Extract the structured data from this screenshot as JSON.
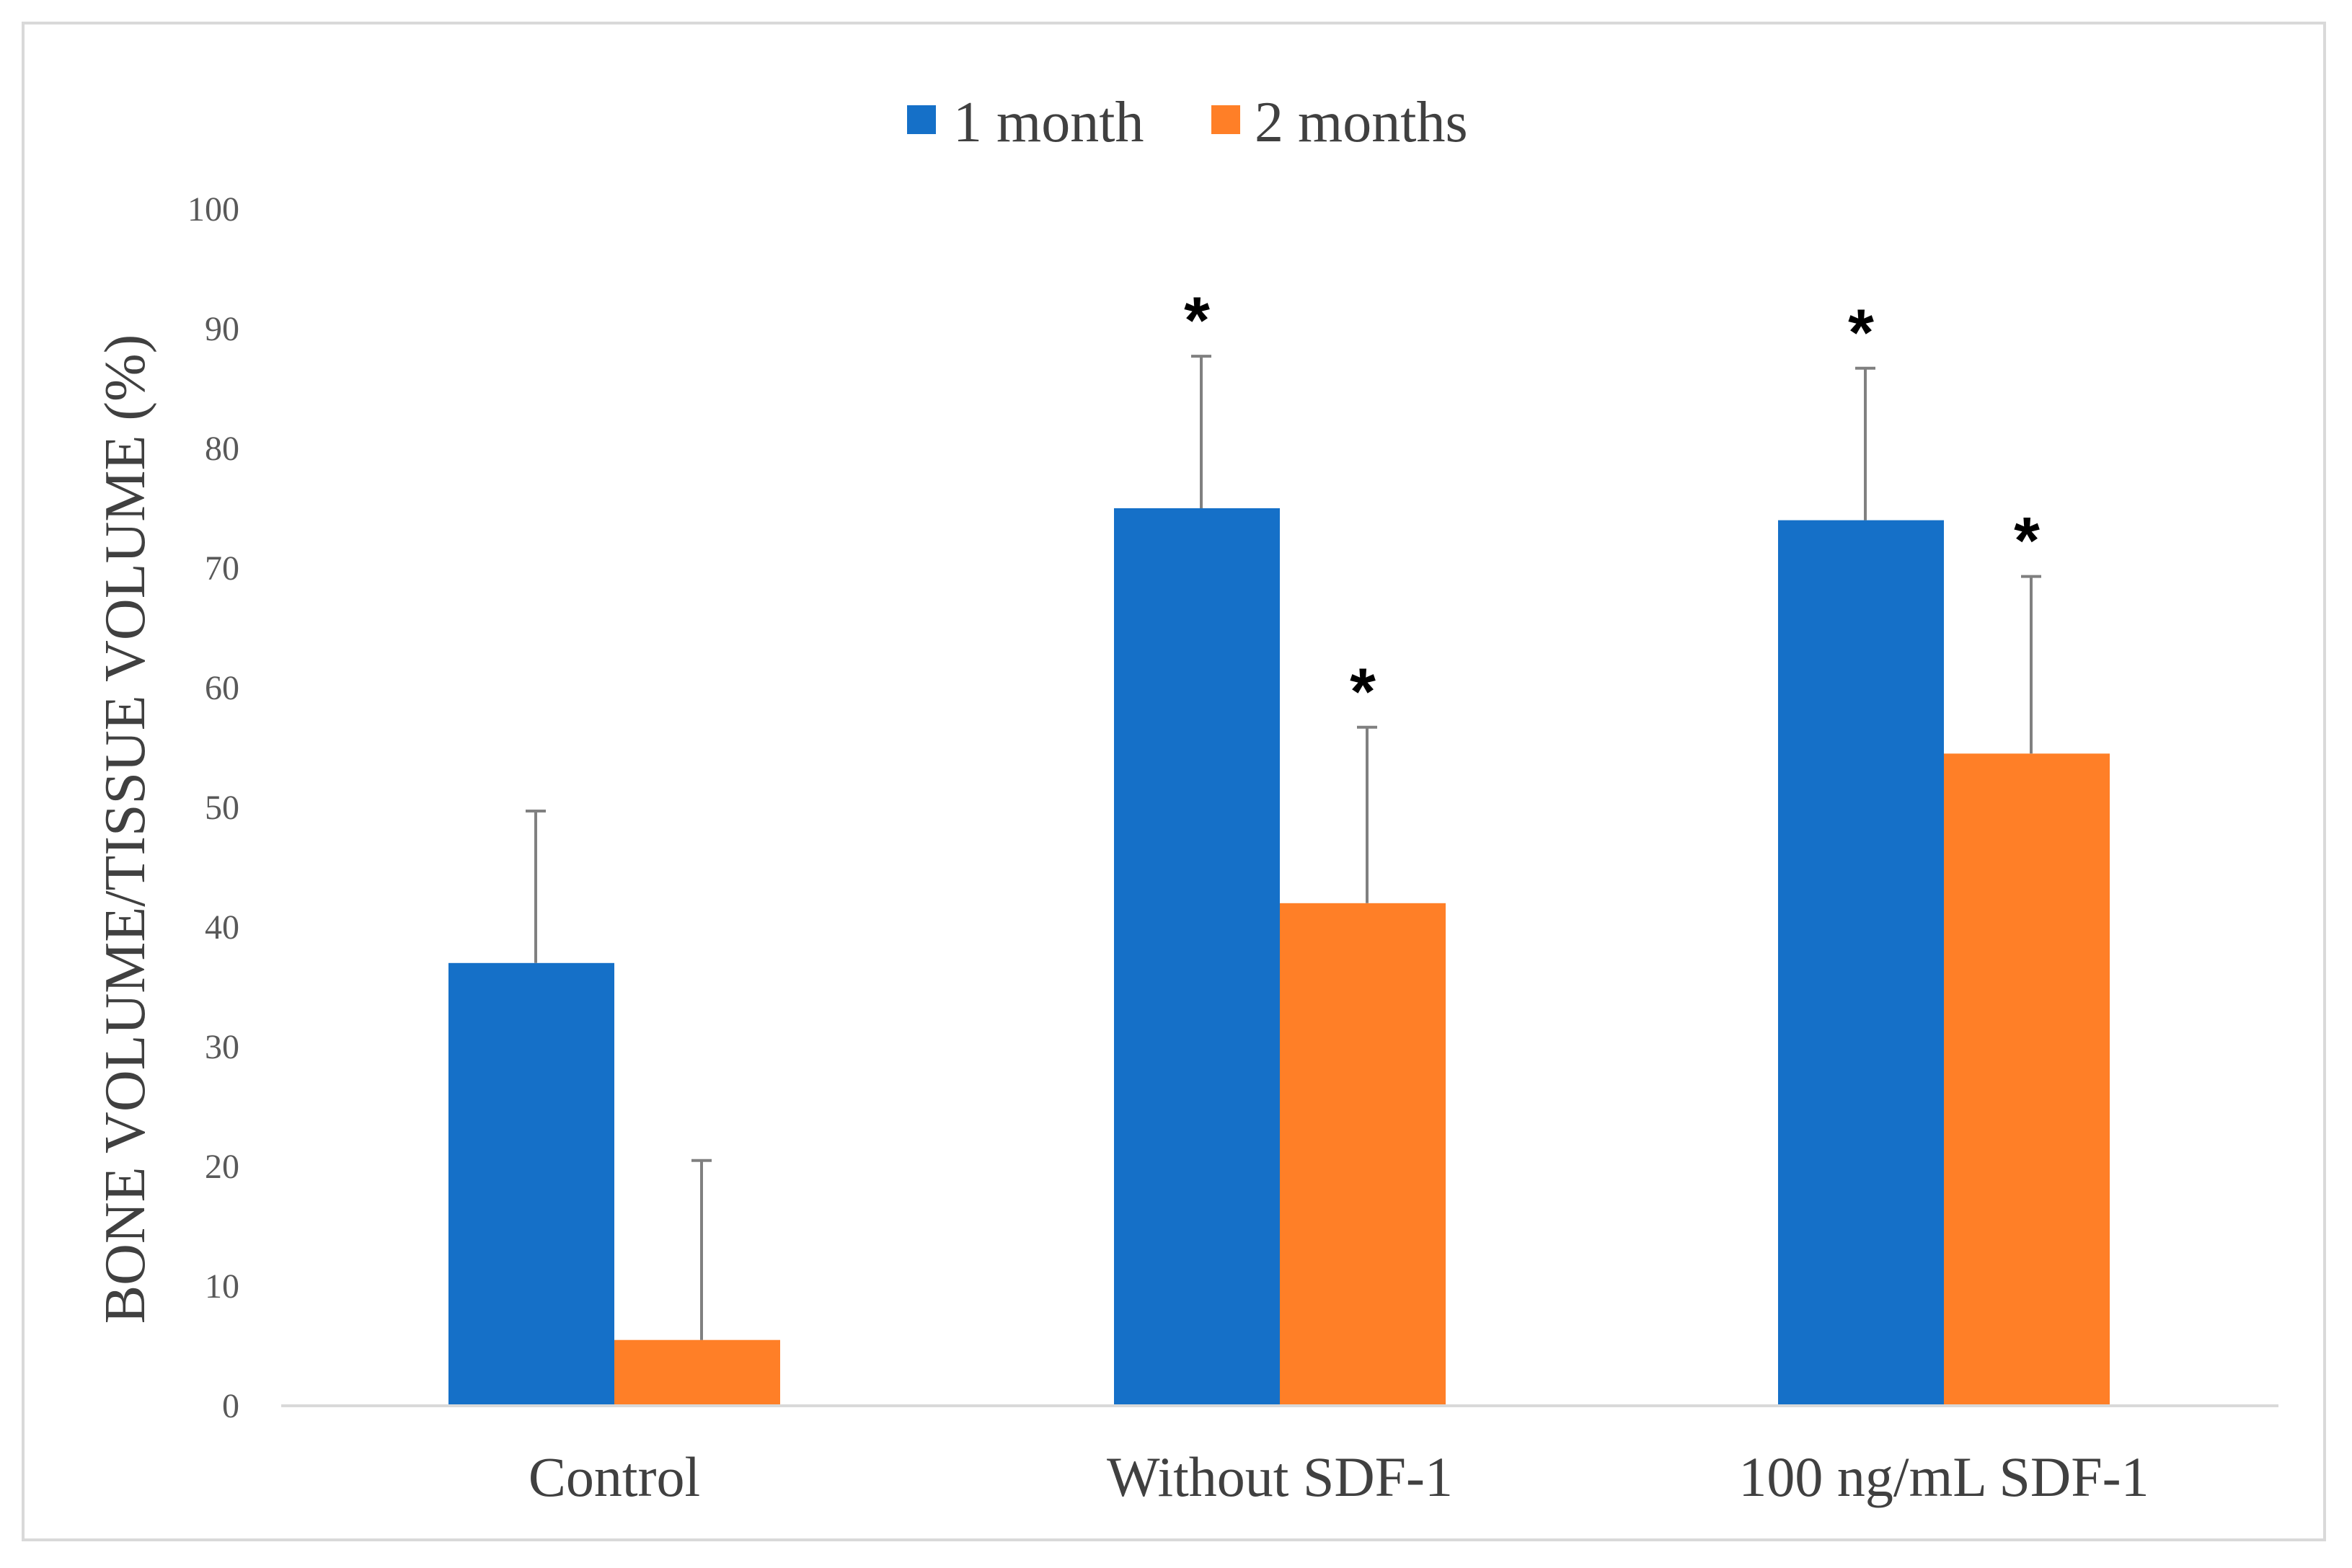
{
  "chart_data": {
    "type": "bar",
    "title": "",
    "xlabel": "",
    "ylabel": "BONE VOLUME/TISSUE VOLUME (%)",
    "ylim": [
      0,
      100
    ],
    "yticks": [
      0,
      10,
      20,
      30,
      40,
      50,
      60,
      70,
      80,
      90,
      100
    ],
    "grid": false,
    "legend_position": "top-center",
    "categories": [
      "Control",
      "Without SDF-1",
      "100 ng/mL SDF-1"
    ],
    "series": [
      {
        "name": "1 month",
        "color": "#1570C8",
        "values": [
          37,
          75,
          74
        ],
        "error": [
          12.7,
          12.7,
          12.7
        ],
        "significance": [
          "",
          "*",
          "*"
        ]
      },
      {
        "name": "2 months",
        "color": "#FF7F27",
        "values": [
          5.5,
          42,
          54.5
        ],
        "error": [
          15,
          14.7,
          14.8
        ],
        "significance": [
          "",
          "*",
          "*"
        ]
      }
    ]
  }
}
